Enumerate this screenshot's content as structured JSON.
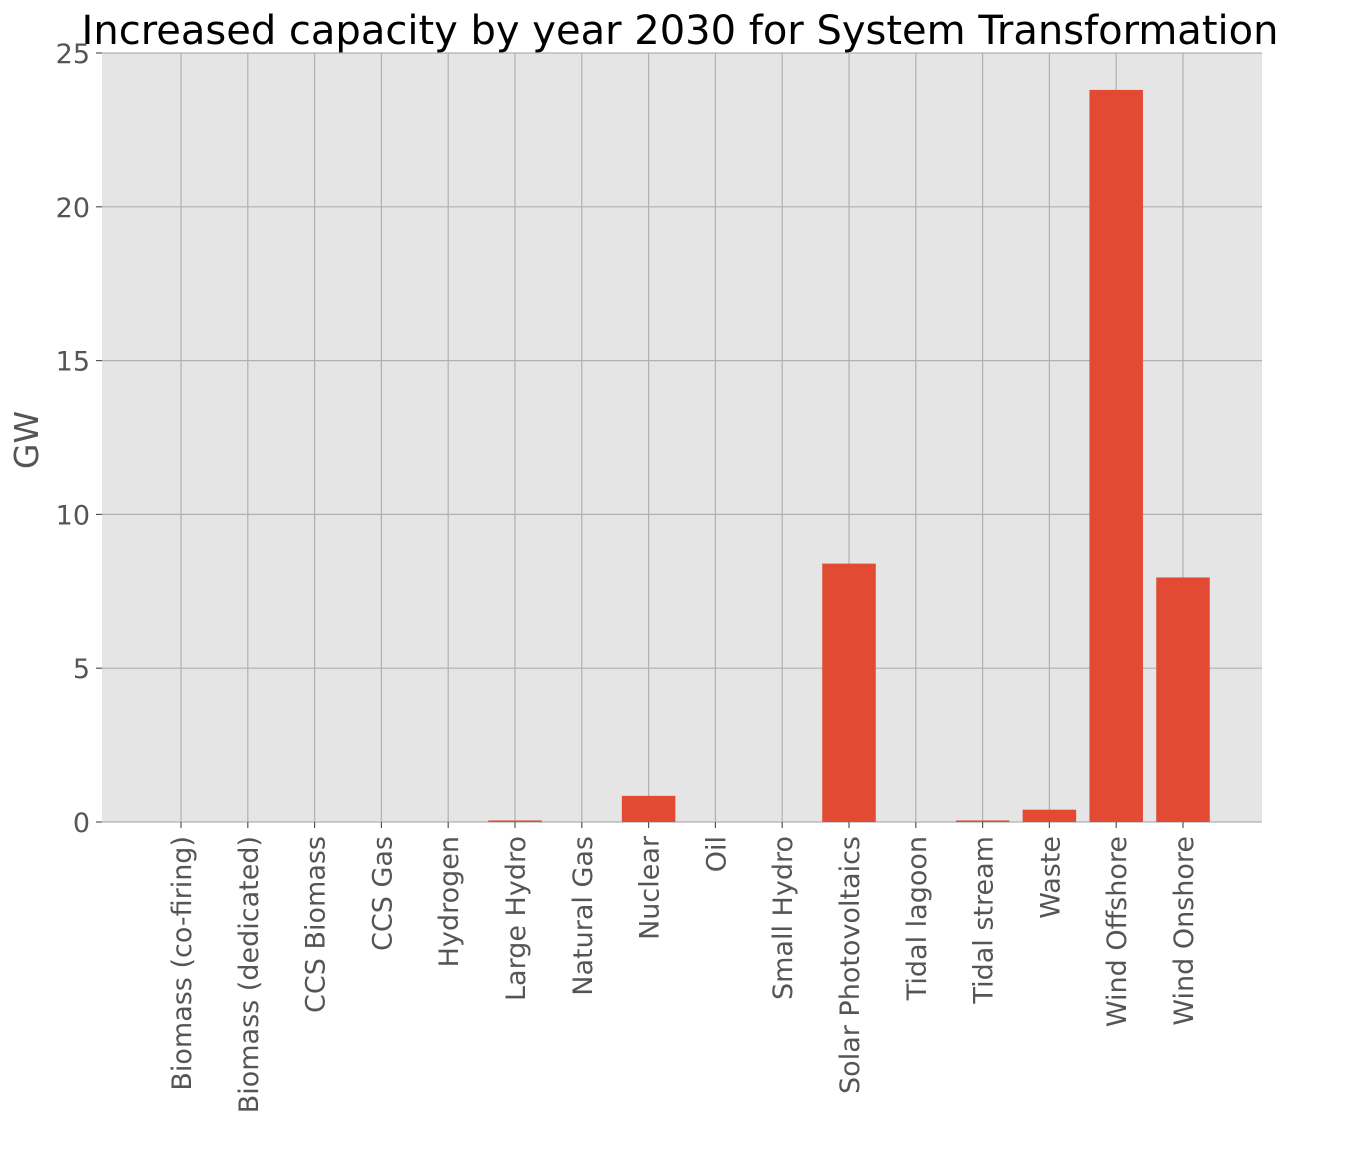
{
  "chart_data": {
    "type": "bar",
    "title": "Increased capacity by year 2030 for System Transformation",
    "xlabel": "",
    "ylabel": "GW",
    "ylim": [
      0,
      25
    ],
    "yticks": [
      "0",
      "5",
      "10",
      "15",
      "20",
      "25"
    ],
    "grid": true,
    "categories": [
      "Biomass (co-firing)",
      "Biomass (dedicated)",
      "CCS Biomass",
      "CCS Gas",
      "Hydrogen",
      "Large Hydro",
      "Natural Gas",
      "Nuclear",
      "Oil",
      "Small Hydro",
      "Solar Photovoltaics",
      "Tidal lagoon",
      "Tidal stream",
      "Waste",
      "Wind Offshore",
      "Wind Onshore"
    ],
    "values": [
      0,
      0,
      0,
      0,
      0,
      0.05,
      0,
      0.85,
      0,
      0,
      8.4,
      0,
      0.05,
      0.4,
      23.8,
      7.95
    ],
    "colors": {
      "bar": "#e24a33",
      "plot_background": "#e5e5e5",
      "grid": "#b0b0b0",
      "text": "#555555"
    }
  }
}
